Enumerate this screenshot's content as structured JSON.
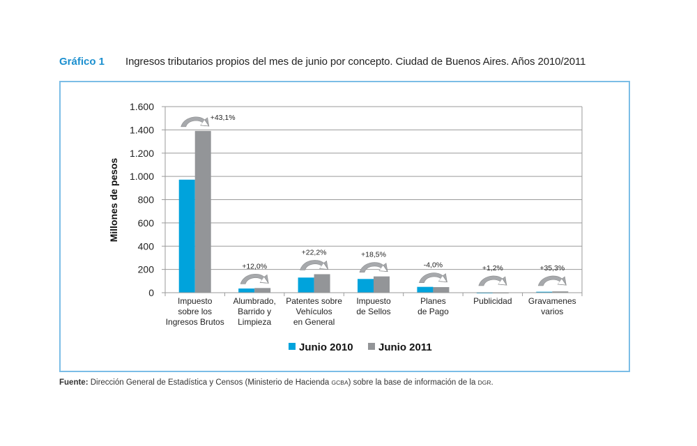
{
  "header": {
    "figure_number": "Gráfico 1",
    "title": "Ingresos tributarios propios del mes de junio por concepto. Ciudad de Buenos Aires. Años 2010/2011"
  },
  "footer": {
    "source_label": "Fuente:",
    "source_text_1": " Dirección General de Estadística y Censos (Ministerio de Hacienda ",
    "source_abbr_1": "gcba",
    "source_text_2": ") sobre la base de información de la ",
    "source_abbr_2": "dgr",
    "source_text_3": "."
  },
  "colors": {
    "series_2010": "#00a3dc",
    "series_2011": "#939598",
    "frame": "#7bbde6",
    "title_accent": "#1b8fcf",
    "grid": "#9a9a9a"
  },
  "chart_data": {
    "type": "bar",
    "title": "Ingresos tributarios propios del mes de junio por concepto. Ciudad de Buenos Aires. Años 2010/2011",
    "xlabel": "",
    "ylabel": "Millones de pesos",
    "ylim": [
      0,
      1600
    ],
    "yticks": [
      0,
      200,
      400,
      600,
      800,
      1000,
      1200,
      1400,
      1600
    ],
    "ytick_labels": [
      "0",
      "200",
      "400",
      "600",
      "800",
      "1.000",
      "1.200",
      "1.400",
      "1.600"
    ],
    "grid": true,
    "legend_position": "bottom-center",
    "categories": [
      [
        "Impuesto",
        "sobre los",
        "Ingresos Brutos"
      ],
      [
        "Alumbrado,",
        "Barrido y",
        "Limpieza"
      ],
      [
        "Patentes sobre",
        "Vehículos",
        "en General"
      ],
      [
        "Impuesto",
        "de Sellos"
      ],
      [
        "Planes",
        "de Pago"
      ],
      [
        "Publicidad"
      ],
      [
        "Gravamenes",
        "varios"
      ]
    ],
    "series": [
      {
        "name": "Junio 2010",
        "values": [
          972,
          36,
          130,
          118,
          50,
          3,
          8
        ]
      },
      {
        "name": "Junio 2011",
        "values": [
          1391,
          40,
          159,
          140,
          48,
          3,
          11
        ]
      }
    ],
    "annotations": [
      "+43,1%",
      "+12,0%",
      "+22,2%",
      "+18,5%",
      "-4,0%",
      "+1,2%",
      "+35,3%"
    ]
  }
}
